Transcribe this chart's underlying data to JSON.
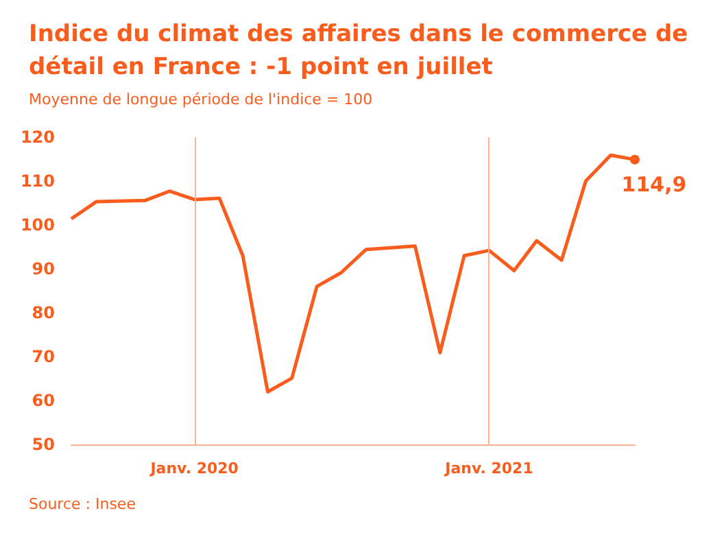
{
  "chart_data": {
    "type": "line",
    "title": "Indice du climat des affaires dans le commerce de détail en France : -1 point en juillet",
    "subtitle": "Moyenne de longue période de l'indice = 100",
    "annotations": [
      "Source : Insee"
    ],
    "x": [
      "2019-08",
      "2019-09",
      "2019-11",
      "2019-12",
      "2020-01",
      "2020-02",
      "2020-03",
      "2020-04",
      "2020-05",
      "2020-06",
      "2020-07",
      "2020-08",
      "2020-10",
      "2020-11",
      "2020-12",
      "2021-01",
      "2021-02",
      "2021-03",
      "2021-04",
      "2021-05",
      "2021-06",
      "2021-07"
    ],
    "series": [
      {
        "color": "#f95d1d",
        "values": [
          101.4,
          105.3,
          105.6,
          107.7,
          105.8,
          106.1,
          93.0,
          62.0,
          65.1,
          86.0,
          89.1,
          94.4,
          95.2,
          70.9,
          93.0,
          94.2,
          89.6,
          96.4,
          92.0,
          110.0,
          115.9,
          114.9
        ],
        "value_labels": [
          null,
          null,
          null,
          null,
          null,
          null,
          null,
          null,
          null,
          null,
          null,
          null,
          null,
          null,
          null,
          null,
          null,
          null,
          null,
          null,
          null,
          "114,9"
        ]
      }
    ],
    "xlim": [
      "2019-08",
      "2021-07"
    ],
    "xticks": [
      {
        "value": "2020-01",
        "label": "Janv. 2020"
      },
      {
        "value": "2021-01",
        "label": "Janv. 2021"
      }
    ],
    "ylim": [
      50,
      120
    ],
    "yticks": [
      50,
      60,
      70,
      80,
      90,
      100,
      110,
      120
    ],
    "grid": "x",
    "line_style": "solid",
    "marker": "none"
  }
}
